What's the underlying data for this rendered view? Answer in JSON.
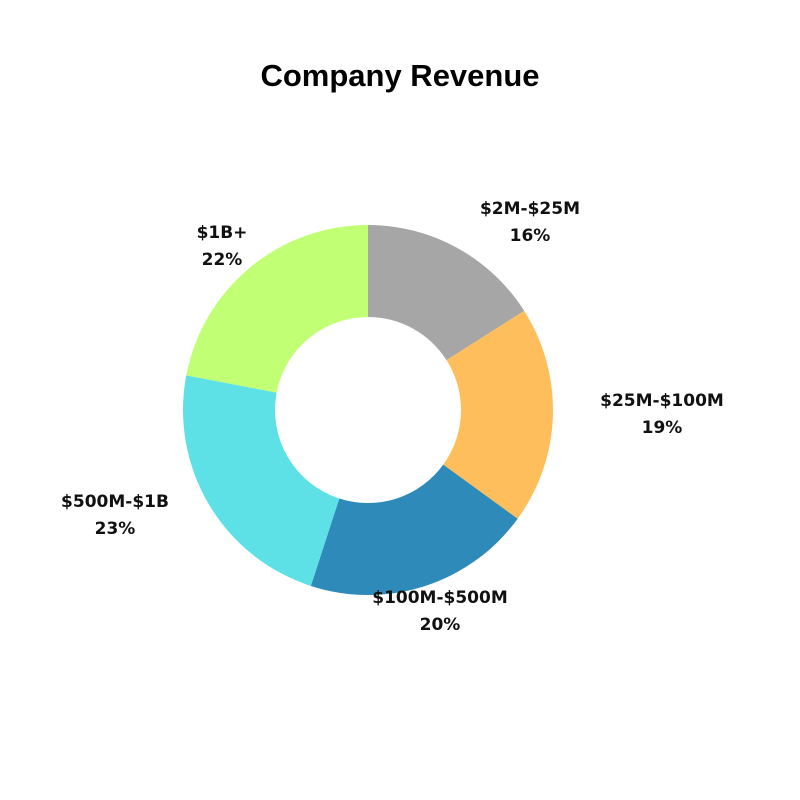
{
  "chart_data": {
    "type": "pie",
    "donut": true,
    "title": "Company Revenue",
    "start": "12 o'clock",
    "direction": "clockwise",
    "slices": [
      {
        "label": "$2M-$25M",
        "value": 16,
        "value_label": "16%",
        "color": "#a6a6a6"
      },
      {
        "label": "$25M-$100M",
        "value": 19,
        "value_label": "19%",
        "color": "#ffbe5c"
      },
      {
        "label": "$100M-$500M",
        "value": 20,
        "value_label": "20%",
        "color": "#2e8bb9"
      },
      {
        "label": "$500M-$1B",
        "value": 23,
        "value_label": "23%",
        "color": "#5de1e6"
      },
      {
        "label": "$1B+",
        "value": 22,
        "value_label": "22%",
        "color": "#c1ff74"
      }
    ],
    "legend": "none"
  }
}
